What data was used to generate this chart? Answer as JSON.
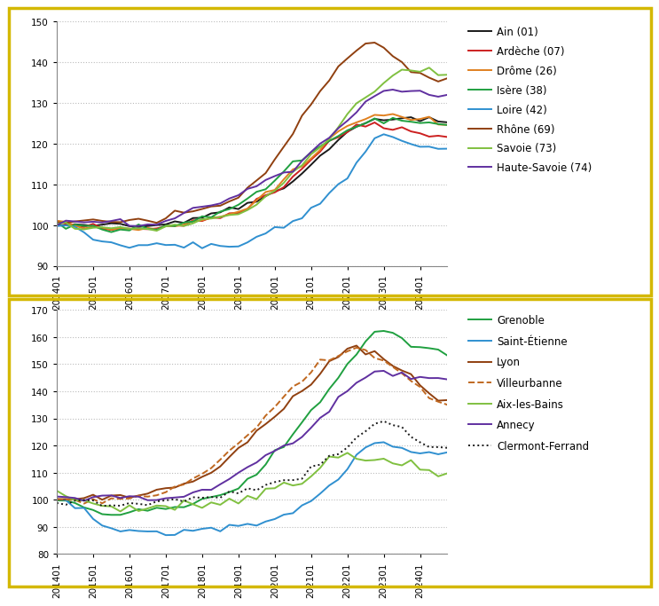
{
  "x_labels": [
    "201401",
    "201501",
    "201601",
    "201701",
    "201801",
    "201901",
    "202001",
    "202101",
    "202201",
    "202301",
    "202401"
  ],
  "n_points": 44,
  "chart1": {
    "ylim": [
      90,
      150
    ],
    "yticks": [
      90,
      100,
      110,
      120,
      130,
      140,
      150
    ]
  },
  "chart2": {
    "ylim": [
      80,
      170
    ],
    "yticks": [
      80,
      90,
      100,
      110,
      120,
      130,
      140,
      150,
      160,
      170
    ]
  },
  "series1": {
    "Ain (01)": {
      "color": "#1a1a1a",
      "lw": 1.4,
      "ls": "-",
      "y": [
        100,
        100,
        100,
        100,
        100,
        100,
        100,
        100,
        100,
        100,
        100,
        100,
        101,
        101,
        101,
        102,
        102,
        103,
        103,
        104,
        104,
        105,
        106,
        107,
        108,
        109,
        111,
        113,
        115,
        117,
        119,
        121,
        123,
        124,
        125,
        126,
        126,
        126,
        126,
        126,
        126,
        126,
        125,
        125
      ]
    },
    "Ardèche (07)": {
      "color": "#cc2020",
      "lw": 1.4,
      "ls": "-",
      "y": [
        101,
        100,
        100,
        100,
        100,
        99,
        99,
        99,
        99,
        99,
        99,
        99,
        100,
        100,
        100,
        101,
        101,
        102,
        102,
        103,
        103,
        104,
        106,
        107,
        109,
        110,
        112,
        114,
        116,
        118,
        120,
        122,
        123,
        124,
        124,
        125,
        124,
        124,
        124,
        123,
        123,
        122,
        122,
        122
      ]
    },
    "Drôme (26)": {
      "color": "#e08020",
      "lw": 1.4,
      "ls": "-",
      "y": [
        101,
        101,
        100,
        100,
        99,
        99,
        99,
        99,
        99,
        99,
        99,
        99,
        100,
        100,
        100,
        101,
        101,
        102,
        102,
        103,
        103,
        104,
        106,
        108,
        109,
        111,
        113,
        115,
        117,
        119,
        121,
        123,
        124,
        125,
        126,
        127,
        127,
        127,
        127,
        126,
        126,
        126,
        125,
        125
      ]
    },
    "Isère (38)": {
      "color": "#20a040",
      "lw": 1.4,
      "ls": "-",
      "y": [
        100,
        100,
        100,
        100,
        100,
        99,
        99,
        99,
        99,
        99,
        99,
        99,
        100,
        100,
        101,
        101,
        102,
        102,
        103,
        104,
        105,
        106,
        108,
        109,
        111,
        113,
        115,
        116,
        118,
        119,
        121,
        122,
        123,
        124,
        125,
        126,
        126,
        126,
        126,
        126,
        125,
        125,
        125,
        125
      ]
    },
    "Loire (42)": {
      "color": "#3090d0",
      "lw": 1.4,
      "ls": "-",
      "y": [
        100,
        100,
        99,
        98,
        97,
        96,
        96,
        95,
        95,
        95,
        95,
        95,
        95,
        95,
        95,
        95,
        95,
        95,
        95,
        95,
        95,
        96,
        97,
        98,
        99,
        100,
        101,
        102,
        104,
        106,
        108,
        110,
        112,
        115,
        118,
        121,
        122,
        122,
        121,
        120,
        119,
        119,
        119,
        119
      ]
    },
    "Rhône (69)": {
      "color": "#904010",
      "lw": 1.4,
      "ls": "-",
      "y": [
        101,
        101,
        101,
        101,
        101,
        101,
        101,
        101,
        101,
        101,
        101,
        101,
        102,
        103,
        103,
        104,
        104,
        105,
        105,
        106,
        107,
        109,
        111,
        113,
        116,
        119,
        123,
        127,
        130,
        133,
        136,
        139,
        141,
        143,
        145,
        145,
        144,
        142,
        140,
        138,
        137,
        136,
        136,
        136
      ]
    },
    "Savoie (73)": {
      "color": "#80c040",
      "lw": 1.4,
      "ls": "-",
      "y": [
        100,
        100,
        100,
        99,
        99,
        99,
        99,
        99,
        99,
        99,
        99,
        99,
        100,
        100,
        100,
        100,
        101,
        101,
        102,
        102,
        103,
        104,
        105,
        107,
        109,
        111,
        113,
        115,
        117,
        119,
        121,
        124,
        127,
        130,
        131,
        133,
        135,
        137,
        138,
        138,
        138,
        138,
        137,
        137
      ]
    },
    "Haute-Savoie (74)": {
      "color": "#6030a0",
      "lw": 1.4,
      "ls": "-",
      "y": [
        100,
        101,
        101,
        101,
        101,
        101,
        101,
        101,
        100,
        100,
        100,
        100,
        101,
        102,
        103,
        104,
        105,
        105,
        106,
        107,
        108,
        109,
        110,
        111,
        112,
        113,
        114,
        116,
        118,
        120,
        122,
        124,
        126,
        128,
        130,
        132,
        133,
        133,
        133,
        133,
        133,
        132,
        132,
        132
      ]
    }
  },
  "series2": {
    "Grenoble": {
      "color": "#20a040",
      "lw": 1.4,
      "ls": "-",
      "y": [
        100,
        99,
        98,
        97,
        96,
        95,
        95,
        95,
        96,
        96,
        96,
        97,
        97,
        98,
        98,
        99,
        100,
        101,
        102,
        103,
        105,
        107,
        110,
        113,
        117,
        121,
        125,
        129,
        133,
        137,
        141,
        145,
        150,
        155,
        158,
        161,
        162,
        162,
        160,
        158,
        156,
        155,
        155,
        155
      ]
    },
    "Saint-Étienne": {
      "color": "#3090d0",
      "lw": 1.4,
      "ls": "-",
      "y": [
        100,
        99,
        98,
        96,
        93,
        91,
        90,
        89,
        89,
        88,
        88,
        88,
        88,
        88,
        88,
        88,
        88,
        89,
        89,
        90,
        90,
        91,
        91,
        92,
        93,
        94,
        95,
        97,
        100,
        102,
        105,
        108,
        112,
        116,
        119,
        121,
        121,
        120,
        119,
        118,
        117,
        117,
        117,
        117
      ]
    },
    "Lyon": {
      "color": "#904010",
      "lw": 1.4,
      "ls": "-",
      "y": [
        101,
        101,
        101,
        101,
        101,
        101,
        101,
        101,
        101,
        102,
        102,
        103,
        103,
        104,
        105,
        107,
        109,
        111,
        113,
        116,
        119,
        122,
        125,
        128,
        131,
        134,
        137,
        140,
        143,
        147,
        150,
        153,
        155,
        156,
        155,
        154,
        152,
        150,
        148,
        146,
        142,
        139,
        137,
        136
      ]
    },
    "Villeurbanne": {
      "color": "#c06820",
      "lw": 1.4,
      "ls": "--",
      "y": [
        100,
        100,
        100,
        100,
        100,
        100,
        100,
        100,
        100,
        101,
        101,
        102,
        103,
        104,
        106,
        108,
        110,
        112,
        115,
        118,
        121,
        124,
        127,
        131,
        135,
        138,
        141,
        144,
        147,
        150,
        152,
        154,
        155,
        155,
        154,
        153,
        151,
        149,
        147,
        145,
        141,
        138,
        136,
        135
      ]
    },
    "Aix-les-Bains": {
      "color": "#80c040",
      "lw": 1.4,
      "ls": "-",
      "y": [
        102,
        101,
        101,
        100,
        99,
        98,
        97,
        97,
        97,
        97,
        97,
        97,
        97,
        97,
        98,
        98,
        98,
        99,
        99,
        100,
        100,
        101,
        102,
        103,
        104,
        105,
        106,
        108,
        110,
        112,
        114,
        115,
        116,
        116,
        115,
        115,
        114,
        114,
        113,
        113,
        112,
        111,
        110,
        110
      ]
    },
    "Annecy": {
      "color": "#6030a0",
      "lw": 1.4,
      "ls": "-",
      "y": [
        101,
        101,
        101,
        101,
        101,
        101,
        101,
        101,
        100,
        100,
        100,
        100,
        100,
        101,
        101,
        102,
        103,
        104,
        106,
        108,
        110,
        112,
        114,
        116,
        118,
        120,
        122,
        124,
        127,
        130,
        133,
        137,
        140,
        143,
        145,
        147,
        147,
        146,
        146,
        145,
        145,
        145,
        145,
        144
      ]
    },
    "Clermont-Ferrand": {
      "color": "#1a1a1a",
      "lw": 1.4,
      "ls": ":",
      "y": [
        100,
        100,
        99,
        99,
        99,
        98,
        98,
        98,
        98,
        98,
        98,
        99,
        99,
        100,
        100,
        101,
        101,
        102,
        102,
        103,
        103,
        104,
        104,
        105,
        106,
        107,
        108,
        109,
        111,
        113,
        115,
        117,
        120,
        123,
        126,
        128,
        128,
        127,
        125,
        123,
        121,
        120,
        120,
        119
      ]
    }
  },
  "border_color": "#d4b800",
  "grid_color": "#bbbbbb",
  "tick_fontsize": 7.5,
  "legend_fontsize": 8.5
}
